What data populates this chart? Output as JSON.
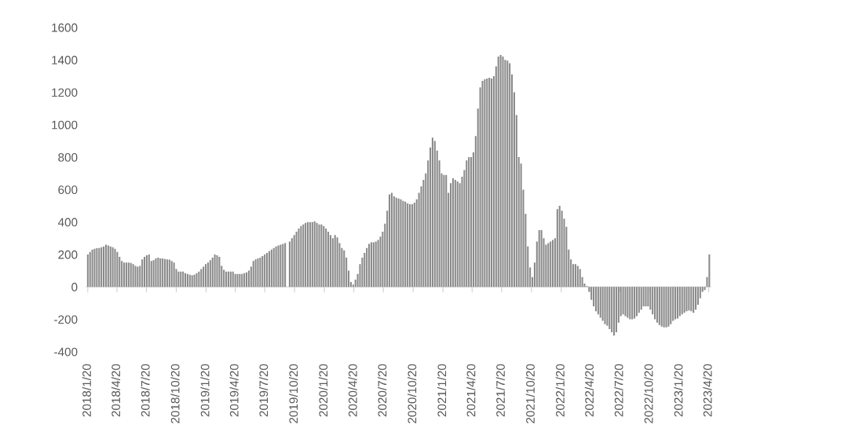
{
  "chart_data": {
    "type": "bar",
    "color": "#8a8a8a",
    "x": [
      "2018-01-20",
      "2018-01-27",
      "2018-02-03",
      "2018-02-10",
      "2018-02-17",
      "2018-02-24",
      "2018-03-03",
      "2018-03-10",
      "2018-03-17",
      "2018-03-24",
      "2018-03-31",
      "2018-04-07",
      "2018-04-14",
      "2018-04-21",
      "2018-04-28",
      "2018-05-05",
      "2018-05-12",
      "2018-05-19",
      "2018-05-26",
      "2018-06-02",
      "2018-06-09",
      "2018-06-16",
      "2018-06-23",
      "2018-06-30",
      "2018-07-07",
      "2018-07-14",
      "2018-07-21",
      "2018-07-28",
      "2018-08-04",
      "2018-08-11",
      "2018-08-18",
      "2018-08-25",
      "2018-09-01",
      "2018-09-08",
      "2018-09-15",
      "2018-09-22",
      "2018-09-29",
      "2018-10-06",
      "2018-10-13",
      "2018-10-20",
      "2018-10-27",
      "2018-11-03",
      "2018-11-10",
      "2018-11-17",
      "2018-11-24",
      "2018-12-01",
      "2018-12-08",
      "2018-12-15",
      "2018-12-22",
      "2018-12-29",
      "2019-01-05",
      "2019-01-12",
      "2019-01-19",
      "2019-01-26",
      "2019-02-02",
      "2019-02-09",
      "2019-02-16",
      "2019-02-23",
      "2019-03-02",
      "2019-03-09",
      "2019-03-16",
      "2019-03-23",
      "2019-03-30",
      "2019-04-06",
      "2019-04-13",
      "2019-04-20",
      "2019-04-27",
      "2019-05-04",
      "2019-05-11",
      "2019-05-18",
      "2019-05-25",
      "2019-06-01",
      "2019-06-08",
      "2019-06-15",
      "2019-06-22",
      "2019-06-29",
      "2019-07-06",
      "2019-07-13",
      "2019-07-20",
      "2019-07-27",
      "2019-08-03",
      "2019-08-10",
      "2019-08-17",
      "2019-08-24",
      "2019-08-31",
      "2019-09-07",
      "2019-09-14",
      "2019-09-21",
      "2019-09-28",
      "2019-10-05",
      "2019-10-12",
      "2019-10-19",
      "2019-10-26",
      "2019-11-02",
      "2019-11-09",
      "2019-11-16",
      "2019-11-23",
      "2019-11-30",
      "2019-12-07",
      "2019-12-14",
      "2019-12-21",
      "2019-12-28",
      "2020-01-04",
      "2020-01-11",
      "2020-01-18",
      "2020-01-25",
      "2020-02-01",
      "2020-02-08",
      "2020-02-15",
      "2020-02-22",
      "2020-02-29",
      "2020-03-07",
      "2020-03-14",
      "2020-03-21",
      "2020-03-28",
      "2020-04-04",
      "2020-04-11",
      "2020-04-18",
      "2020-04-25",
      "2020-05-02",
      "2020-05-09",
      "2020-05-16",
      "2020-05-23",
      "2020-05-30",
      "2020-06-06",
      "2020-06-13",
      "2020-06-20",
      "2020-06-27",
      "2020-07-04",
      "2020-07-11",
      "2020-07-18",
      "2020-07-25",
      "2020-08-01",
      "2020-08-08",
      "2020-08-15",
      "2020-08-22",
      "2020-08-29",
      "2020-09-05",
      "2020-09-12",
      "2020-09-19",
      "2020-09-26",
      "2020-10-03",
      "2020-10-10",
      "2020-10-17",
      "2020-10-24",
      "2020-10-31",
      "2020-11-07",
      "2020-11-14",
      "2020-11-21",
      "2020-11-28",
      "2020-12-05",
      "2020-12-12",
      "2020-12-19",
      "2020-12-26",
      "2021-01-02",
      "2021-01-09",
      "2021-01-16",
      "2021-01-23",
      "2021-01-30",
      "2021-02-06",
      "2021-02-13",
      "2021-02-20",
      "2021-02-27",
      "2021-03-06",
      "2021-03-13",
      "2021-03-20",
      "2021-03-27",
      "2021-04-03",
      "2021-04-10",
      "2021-04-17",
      "2021-04-24",
      "2021-05-01",
      "2021-05-08",
      "2021-05-15",
      "2021-05-22",
      "2021-05-29",
      "2021-06-05",
      "2021-06-12",
      "2021-06-19",
      "2021-06-26",
      "2021-07-03",
      "2021-07-10",
      "2021-07-17",
      "2021-07-24",
      "2021-07-31",
      "2021-08-07",
      "2021-08-14",
      "2021-08-21",
      "2021-08-28",
      "2021-09-04",
      "2021-09-11",
      "2021-09-18",
      "2021-09-25",
      "2021-10-02",
      "2021-10-09",
      "2021-10-16",
      "2021-10-23",
      "2021-10-30",
      "2021-11-06",
      "2021-11-13",
      "2021-11-20",
      "2021-11-27",
      "2021-12-04",
      "2021-12-11",
      "2021-12-18",
      "2021-12-25",
      "2022-01-01",
      "2022-01-08",
      "2022-01-15",
      "2022-01-22",
      "2022-01-29",
      "2022-02-05",
      "2022-02-12",
      "2022-02-19",
      "2022-02-26",
      "2022-03-05",
      "2022-03-12",
      "2022-03-19",
      "2022-03-26",
      "2022-04-02",
      "2022-04-09",
      "2022-04-16",
      "2022-04-23",
      "2022-04-30",
      "2022-05-07",
      "2022-05-14",
      "2022-05-21",
      "2022-05-28",
      "2022-06-04",
      "2022-06-11",
      "2022-06-18",
      "2022-06-25",
      "2022-07-02",
      "2022-07-09",
      "2022-07-16",
      "2022-07-23",
      "2022-07-30",
      "2022-08-06",
      "2022-08-13",
      "2022-08-20",
      "2022-08-27",
      "2022-09-03",
      "2022-09-10",
      "2022-09-17",
      "2022-09-24",
      "2022-10-01",
      "2022-10-08",
      "2022-10-15",
      "2022-10-22",
      "2022-10-29",
      "2022-11-05",
      "2022-11-12",
      "2022-11-19",
      "2022-11-26",
      "2022-12-03",
      "2022-12-10",
      "2022-12-17",
      "2022-12-24",
      "2022-12-31",
      "2023-01-07",
      "2023-01-14",
      "2023-01-21",
      "2023-01-28",
      "2023-02-04",
      "2023-02-11",
      "2023-02-18",
      "2023-02-25",
      "2023-03-04",
      "2023-03-11",
      "2023-03-18",
      "2023-03-25",
      "2023-04-01",
      "2023-04-08",
      "2023-04-15",
      "2023-04-22"
    ],
    "values": [
      200,
      215,
      230,
      235,
      238,
      240,
      245,
      250,
      260,
      255,
      250,
      245,
      235,
      215,
      185,
      160,
      150,
      150,
      150,
      148,
      140,
      130,
      125,
      130,
      170,
      185,
      195,
      200,
      160,
      165,
      175,
      180,
      175,
      175,
      172,
      170,
      168,
      160,
      150,
      110,
      95,
      95,
      95,
      85,
      80,
      75,
      72,
      75,
      85,
      95,
      110,
      125,
      140,
      150,
      165,
      180,
      200,
      195,
      185,
      130,
      105,
      95,
      95,
      95,
      95,
      80,
      80,
      80,
      80,
      85,
      90,
      100,
      125,
      160,
      170,
      175,
      180,
      190,
      200,
      210,
      220,
      230,
      240,
      250,
      255,
      260,
      265,
      270,
      null,
      280,
      300,
      320,
      340,
      360,
      375,
      385,
      395,
      400,
      400,
      400,
      405,
      395,
      385,
      385,
      375,
      360,
      340,
      320,
      300,
      320,
      305,
      270,
      240,
      225,
      180,
      100,
      30,
      15,
      45,
      80,
      140,
      180,
      210,
      240,
      265,
      275,
      275,
      280,
      290,
      310,
      340,
      390,
      470,
      570,
      580,
      560,
      550,
      545,
      540,
      530,
      525,
      515,
      510,
      510,
      520,
      540,
      580,
      620,
      660,
      700,
      780,
      860,
      920,
      900,
      840,
      780,
      700,
      690,
      690,
      580,
      640,
      670,
      660,
      650,
      640,
      680,
      720,
      780,
      800,
      800,
      830,
      930,
      1100,
      1230,
      1270,
      1280,
      1285,
      1290,
      1285,
      1300,
      1360,
      1420,
      1430,
      1420,
      1400,
      1395,
      1380,
      1310,
      1200,
      1060,
      800,
      760,
      600,
      450,
      250,
      120,
      60,
      150,
      280,
      350,
      350,
      300,
      260,
      270,
      280,
      290,
      300,
      480,
      500,
      470,
      420,
      370,
      230,
      170,
      140,
      140,
      130,
      110,
      60,
      20,
      5,
      -30,
      -80,
      -120,
      -150,
      -170,
      -190,
      -210,
      -230,
      -240,
      -260,
      -280,
      -300,
      -280,
      -220,
      -180,
      -170,
      -180,
      -190,
      -200,
      -200,
      -195,
      -180,
      -160,
      -140,
      -120,
      -120,
      -120,
      -140,
      -170,
      -200,
      -220,
      -235,
      -245,
      -250,
      -250,
      -245,
      -230,
      -210,
      -200,
      -195,
      -180,
      -170,
      -160,
      -150,
      -145,
      -150,
      -160,
      -140,
      -110,
      -70,
      -30,
      -20,
      60,
      200
    ],
    "xlim": [
      "2018-01-16",
      "2023-04-26"
    ],
    "xticks": [
      {
        "value": "2018-01-20",
        "label": "2018/1/20"
      },
      {
        "value": "2018-04-20",
        "label": "2018/4/20"
      },
      {
        "value": "2018-07-20",
        "label": "2018/7/20"
      },
      {
        "value": "2018-10-20",
        "label": "2018/10/20"
      },
      {
        "value": "2019-01-20",
        "label": "2019/1/20"
      },
      {
        "value": "2019-04-20",
        "label": "2019/4/20"
      },
      {
        "value": "2019-07-20",
        "label": "2019/7/20"
      },
      {
        "value": "2019-10-20",
        "label": "2019/10/20"
      },
      {
        "value": "2020-01-20",
        "label": "2020/1/20"
      },
      {
        "value": "2020-04-20",
        "label": "2020/4/20"
      },
      {
        "value": "2020-07-20",
        "label": "2020/7/20"
      },
      {
        "value": "2020-10-20",
        "label": "2020/10/20"
      },
      {
        "value": "2021-01-20",
        "label": "2021/1/20"
      },
      {
        "value": "2021-04-20",
        "label": "2021/4/20"
      },
      {
        "value": "2021-07-20",
        "label": "2021/7/20"
      },
      {
        "value": "2021-10-20",
        "label": "2021/10/20"
      },
      {
        "value": "2022-01-20",
        "label": "2022/1/20"
      },
      {
        "value": "2022-04-20",
        "label": "2022/4/20"
      },
      {
        "value": "2022-07-20",
        "label": "2022/7/20"
      },
      {
        "value": "2022-10-20",
        "label": "2022/10/20"
      },
      {
        "value": "2023-01-20",
        "label": "2023/1/20"
      },
      {
        "value": "2023-04-20",
        "label": "2023/4/20"
      }
    ],
    "ylim": [
      -400,
      1600
    ],
    "yticks": [
      -400,
      -200,
      0,
      200,
      400,
      600,
      800,
      1000,
      1200,
      1400,
      1600
    ]
  }
}
